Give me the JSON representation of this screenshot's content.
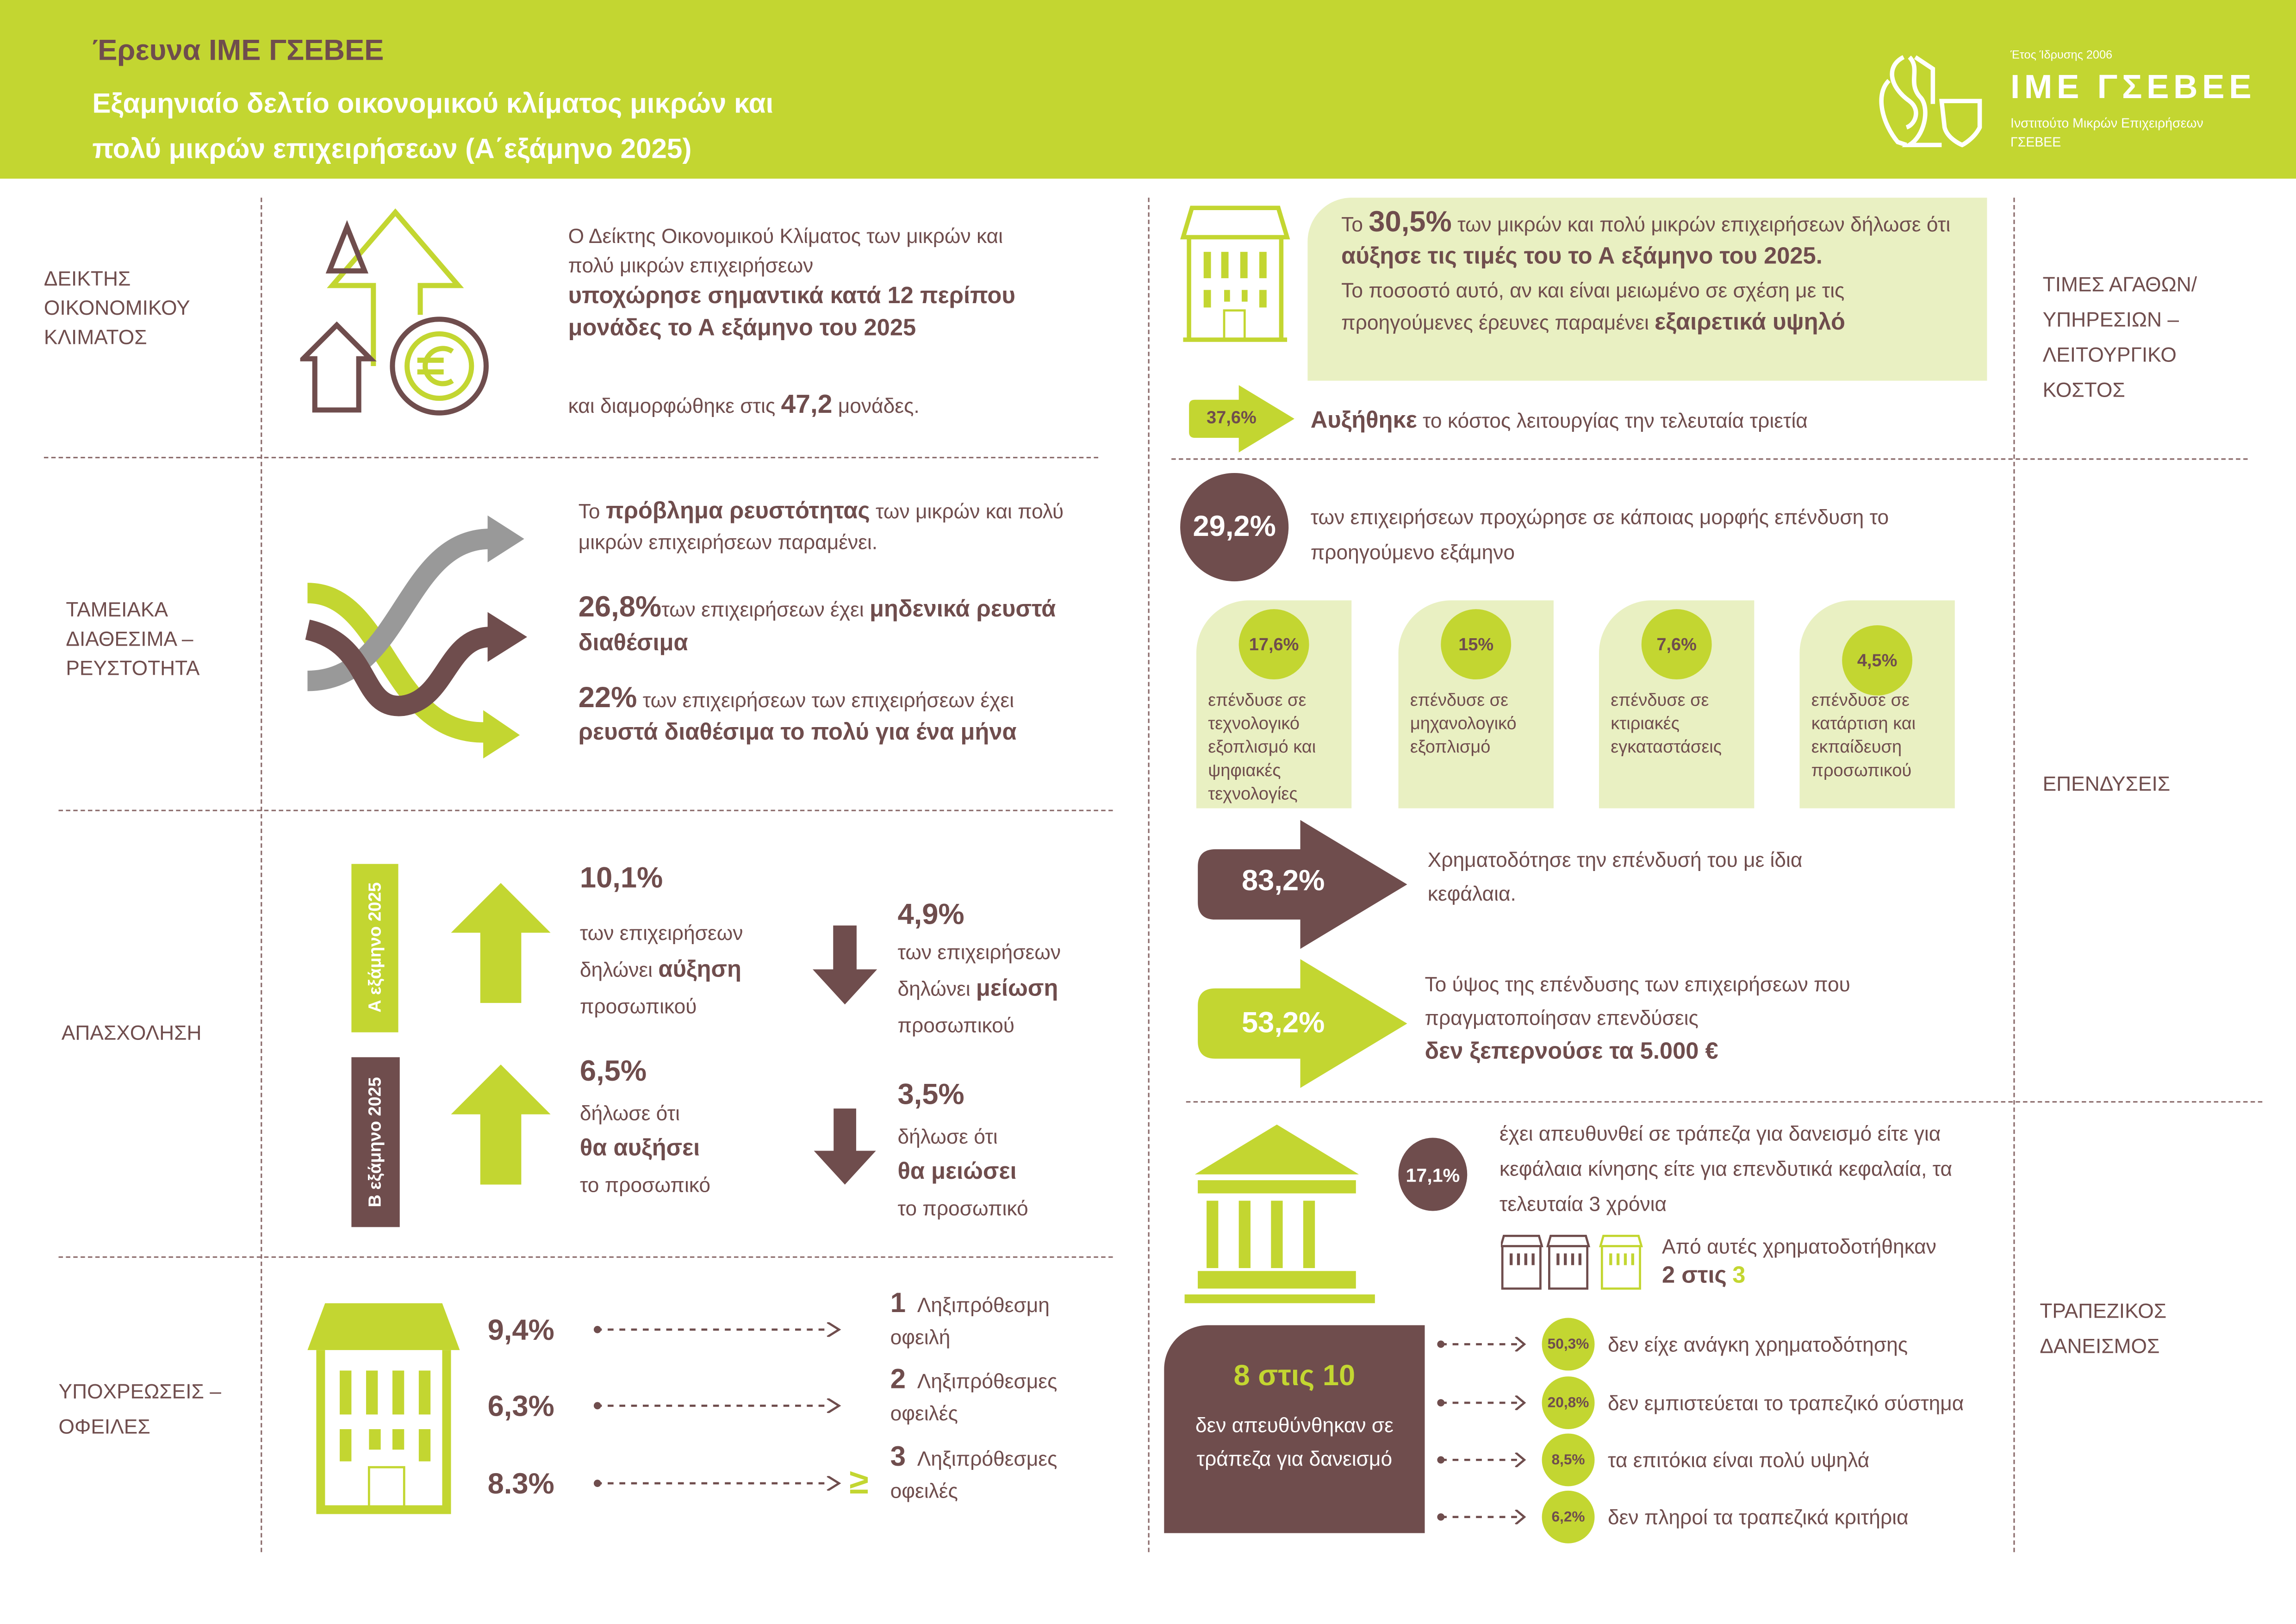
{
  "colors": {
    "accent_green": "#c3d631",
    "brown": "#6f4d4d",
    "light_green": "#e9f0c2"
  },
  "header": {
    "title": "Έρευνα ΙΜΕ ΓΣΕΒΕΕ",
    "subtitle_line1": "Εξαμηνιαίο δελτίο οικονομικού κλίματος μικρών και",
    "subtitle_line2": "πολύ μικρών επιχειρήσεων (Α΄εξάμηνο 2025)"
  },
  "logo": {
    "founded": "Έτος Ίδρυσης 2006",
    "name": "ΙΜΕ ΓΣΕΒΕΕ",
    "full_name_1": "Ινστιτούτο Μικρών Επιχειρήσεων",
    "full_name_2": "ΓΣΕΒΕΕ",
    "icon": "lion-shield-logo"
  },
  "sections_left": [
    {
      "label": "ΔΕΙΚΤΗΣ ΟΙΚΟΝΟΜΙΚΟΥ ΚΛΙΜΑΤΟΣ",
      "icon": "arrows-euro-icon",
      "intro": "Ο Δείκτης Οικονομικού Κλίματος των μικρών και πολύ μικρών επιχειρήσεων",
      "bold": "υποχώρησε σημαντικά κατά 12 περίπου μονάδες το Α εξάμηνο του 2025",
      "outro_pre": "και διαμορφώθηκε στις",
      "value": "47,2",
      "outro_post": "μονάδες."
    },
    {
      "label": "ΤΑΜΕΙΑΚΑ ΔΙΑΘΕΣΙΜΑ – ΡΕΥΣΤΟΤΗΤΑ",
      "icon": "crossing-arrows-icon",
      "p1_pre": "Το",
      "p1_bold": "πρόβλημα ρευστότητας",
      "p1_post": "των μικρών και πολύ μικρών επιχειρήσεων παραμένει.",
      "s1_value": "26,8%",
      "s1_text": "των επιχειρήσεων έχει",
      "s1_bold": "μηδενικά ρευστά διαθέσιμα",
      "s2_value": "22%",
      "s2_text": "των επιχειρήσεων των επιχειρήσεων έχει",
      "s2_bold": "ρευστά διαθέσιμα το πολύ για ένα μήνα"
    },
    {
      "label": "ΑΠΑΣΧΟΛΗΣΗ",
      "period_a": "Α εξάμηνο 2025",
      "period_b": "Β εξάμηνο 2025",
      "a_up": {
        "value": "10,1%",
        "l1": "των επιχειρήσεων",
        "l2_pre": "δηλώνει",
        "l2_bold": "αύξηση",
        "l3": "προσωπικού"
      },
      "a_down": {
        "value": "4,9%",
        "l1": "των επιχειρήσεων",
        "l2_pre": "δηλώνει",
        "l2_bold": "μείωση",
        "l3": "προσωπικού"
      },
      "b_up": {
        "value": "6,5%",
        "l1": "δήλωσε ότι",
        "l2_bold": "θα αυξήσει",
        "l3": "το προσωπικό"
      },
      "b_down": {
        "value": "3,5%",
        "l1": "δήλωσε ότι",
        "l2_bold": "θα μειώσει",
        "l3": "το προσωπικό"
      }
    },
    {
      "label": "ΥΠΟΧΡΕΩΣΕΙΣ – ΟΦΕΙΛΕΣ",
      "rows": [
        {
          "value": "9,4%",
          "num": "1",
          "l1": "Ληξιπρόθεσμη",
          "l2": "οφειλή",
          "prefix": ""
        },
        {
          "value": "6,3%",
          "num": "2",
          "l1": "Ληξιπρόθεσμες",
          "l2": "οφειλές",
          "prefix": ""
        },
        {
          "value": "8.3%",
          "num": "3",
          "l1": "Ληξιπρόθεσμες",
          "l2": "οφειλές",
          "prefix": "≥"
        }
      ]
    }
  ],
  "sections_right": [
    {
      "label": "ΤΙΜΕΣ ΑΓΑΘΩΝ/ ΥΠΗΡΕΣΙΩΝ – ΛΕΙΤΟΥΡΓΙΚΟ ΚΟΣΤΟΣ",
      "box_pre": "Το",
      "box_value": "30,5%",
      "box_mid": "των μικρών και πολύ μικρών επιχειρήσεων δήλωσε ότι",
      "box_bold": "αύξησε τις τιμές του το Α εξάμηνο του 2025.",
      "box_p2": "Το ποσοστό αυτό, αν και είναι μειωμένο σε σχέση με τις προηγούμενες έρευνες  παραμένει",
      "box_p2_bold": "εξαιρετικά υψηλό",
      "cost_value": "37,6%",
      "cost_bold": "Αυξήθηκε",
      "cost_text": "το κόστος λειτουργίας την τελευταία τριετία"
    },
    {
      "label": "ΕΠΕΝΔΥΣΕΙΣ",
      "invest_value": "29,2%",
      "invest_text": "των επιχειρήσεων προχώρησε σε κάποιας μορφής επένδυση το προηγούμενο εξάμηνο",
      "cards": [
        {
          "value": "17,6%",
          "text": "επένδυσε σε τεχνολογικό εξοπλισμό και ψηφιακές τεχνολογίες"
        },
        {
          "value": "15%",
          "text": "επένδυσε σε μηχανολογικό εξοπλισμό"
        },
        {
          "value": "7,6%",
          "text": "επένδυσε σε κτιριακές εγκαταστάσεις"
        },
        {
          "value": "4,5%",
          "text": "επένδυσε σε κατάρτιση και εκπαίδευση προσωπικού"
        }
      ],
      "own_funds_value": "83,2%",
      "own_funds_text": "Χρηματοδότησε την επένδυσή του με ίδια κεφάλαια.",
      "size_value": "53,2%",
      "size_text": "Το ύψος της επένδυσης  των επιχειρήσεων που πραγματοποίησαν επενδύσεις",
      "size_bold": "δεν ξεπερνούσε τα 5.000 €"
    },
    {
      "label": "ΤΡΑΠΕΖΙΚΟΣ ΔΑΝΕΙΣΜΟΣ",
      "bank_value": "17,1%",
      "bank_text": "έχει απευθυνθεί σε τράπεζα για δανεισμό είτε για κεφάλαια κίνησης είτε για επενδυτικά κεφαλαία, τα τελευταία 3 χρόνια",
      "funded_text": "Από αυτές χρηματοδοτήθηκαν",
      "funded_a": "2 στις",
      "funded_b": "3",
      "not_applied_value": "8 στις 10",
      "not_applied_text": "δεν απευθύνθηκαν σε τράπεζα για δανεισμό",
      "reasons": [
        {
          "value": "50,3%",
          "text": "δεν είχε ανάγκη χρηματοδότησης"
        },
        {
          "value": "20,8%",
          "text": "δεν εμπιστεύεται το τραπεζικό σύστημα"
        },
        {
          "value": "8,5%",
          "text": "τα επιτόκια είναι πολύ υψηλά"
        },
        {
          "value": "6,2%",
          "text": "δεν πληροί τα τραπεζικά κριτήρια"
        }
      ]
    }
  ]
}
